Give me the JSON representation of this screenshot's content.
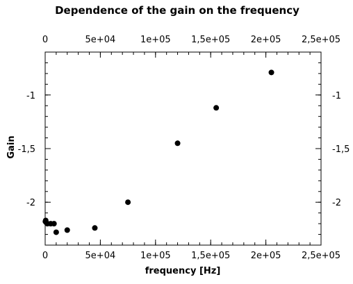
{
  "chart_data": {
    "type": "scatter",
    "title": "Dependence of the gain on the frequency",
    "xlabel": "frequency [Hz]",
    "ylabel": "Gain",
    "xlim": [
      0,
      250000
    ],
    "ylim": [
      -2.4,
      -0.6
    ],
    "x_ticks": [
      0,
      50000,
      100000,
      150000,
      200000,
      250000
    ],
    "x_tick_labels": [
      "0",
      "5e+04",
      "1e+05",
      "1,5e+05",
      "2e+05",
      "2,5e+05"
    ],
    "y_ticks": [
      -2,
      -1.5,
      -1
    ],
    "y_tick_labels": [
      "-2",
      "-1,5",
      "-1"
    ],
    "x_minor_step": 10000,
    "y_minor_step": 0.1,
    "mirror_axes": true,
    "grid": false,
    "legend": "none",
    "marker_color": "#000000",
    "series": [
      {
        "x": [
          200,
          500,
          1000,
          2000,
          5000,
          8000,
          10000,
          20000,
          45000,
          75000,
          120000,
          155000,
          205000
        ],
        "y": [
          -2.18,
          -2.17,
          -2.19,
          -2.2,
          -2.2,
          -2.2,
          -2.28,
          -2.26,
          -2.24,
          -2.0,
          -1.45,
          -1.12,
          -0.79
        ]
      }
    ]
  }
}
